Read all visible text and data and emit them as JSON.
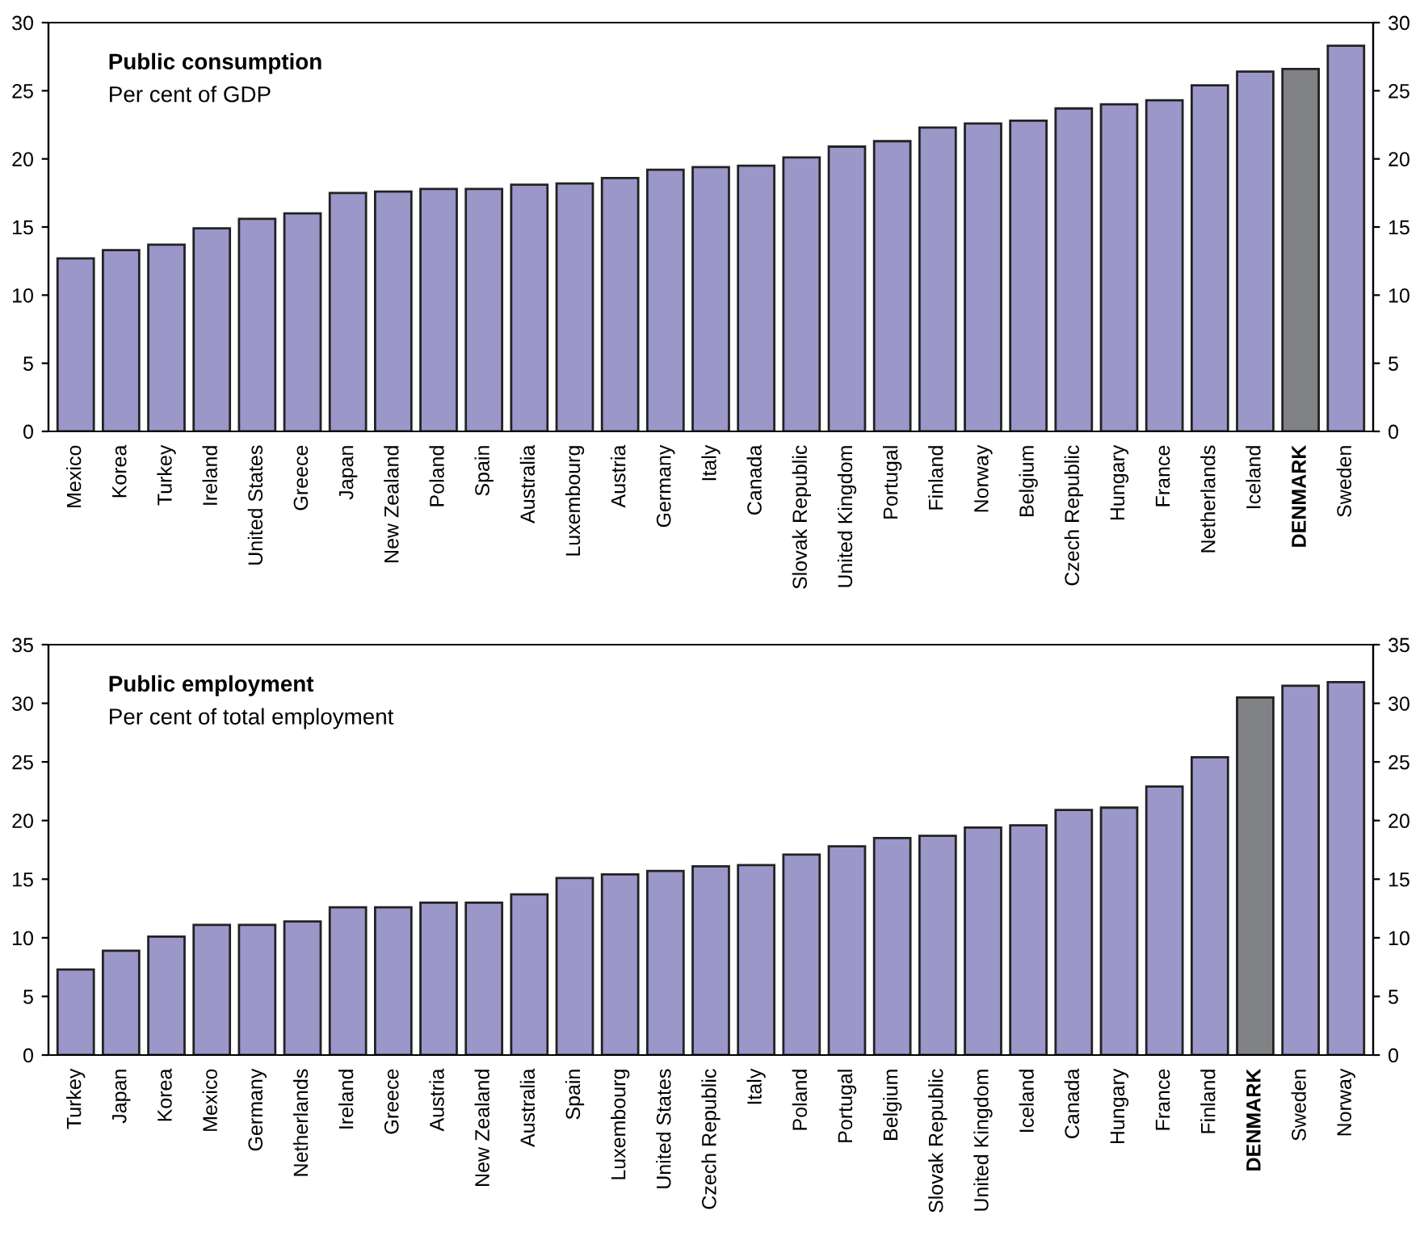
{
  "chart_data": [
    {
      "type": "bar",
      "title": "Public consumption",
      "subtitle": "Per cent of GDP",
      "categories": [
        "Mexico",
        "Korea",
        "Turkey",
        "Ireland",
        "United States",
        "Greece",
        "Japan",
        "New Zealand",
        "Poland",
        "Spain",
        "Australia",
        "Luxembourg",
        "Austria",
        "Germany",
        "Italy",
        "Canada",
        "Slovak Republic",
        "United Kingdom",
        "Portugal",
        "Finland",
        "Norway",
        "Belgium",
        "Czech Republic",
        "Hungary",
        "France",
        "Netherlands",
        "Iceland",
        "DENMARK",
        "Sweden"
      ],
      "values": [
        12.7,
        13.3,
        13.7,
        14.9,
        15.6,
        16.0,
        17.5,
        17.6,
        17.8,
        17.8,
        18.1,
        18.2,
        18.6,
        19.2,
        19.4,
        19.5,
        20.1,
        20.9,
        21.3,
        22.3,
        22.6,
        22.8,
        23.7,
        24.0,
        24.3,
        25.4,
        26.4,
        26.6,
        28.3
      ],
      "colors": [
        "#9b97c9",
        "#9b97c9",
        "#9b97c9",
        "#9b97c9",
        "#9b97c9",
        "#9b97c9",
        "#9b97c9",
        "#9b97c9",
        "#9b97c9",
        "#9b97c9",
        "#9b97c9",
        "#9b97c9",
        "#9b97c9",
        "#9b97c9",
        "#9b97c9",
        "#9b97c9",
        "#9b97c9",
        "#9b97c9",
        "#9b97c9",
        "#9b97c9",
        "#9b97c9",
        "#9b97c9",
        "#9b97c9",
        "#9b97c9",
        "#9b97c9",
        "#9b97c9",
        "#9b97c9",
        "#808285",
        "#9b97c9"
      ],
      "ylim": [
        0,
        30
      ],
      "yticks": [
        0,
        5,
        10,
        15,
        20,
        25,
        30
      ],
      "y2lim": [
        0,
        30
      ],
      "y2ticks": [
        0,
        5,
        10,
        15,
        20,
        25,
        30
      ],
      "grid": false,
      "legend": false
    },
    {
      "type": "bar",
      "title": "Public employment",
      "subtitle": "Per cent of total employment",
      "categories": [
        "Turkey",
        "Japan",
        "Korea",
        "Mexico",
        "Germany",
        "Netherlands",
        "Ireland",
        "Greece",
        "Austria",
        "New Zealand",
        "Australia",
        "Spain",
        "Luxembourg",
        "United States",
        "Czech Republic",
        "Italy",
        "Poland",
        "Portugal",
        "Belgium",
        "Slovak Republic",
        "United Kingdom",
        "Iceland",
        "Canada",
        "Hungary",
        "France",
        "Finland",
        "DENMARK",
        "Sweden",
        "Norway"
      ],
      "values": [
        7.3,
        8.9,
        10.1,
        11.1,
        11.1,
        11.4,
        12.6,
        12.6,
        13.0,
        13.0,
        13.7,
        15.1,
        15.4,
        15.7,
        16.1,
        16.2,
        17.1,
        17.8,
        18.5,
        18.7,
        19.4,
        19.6,
        20.9,
        21.1,
        22.9,
        25.4,
        30.5,
        31.5,
        31.8
      ],
      "colors": [
        "#9b97c9",
        "#9b97c9",
        "#9b97c9",
        "#9b97c9",
        "#9b97c9",
        "#9b97c9",
        "#9b97c9",
        "#9b97c9",
        "#9b97c9",
        "#9b97c9",
        "#9b97c9",
        "#9b97c9",
        "#9b97c9",
        "#9b97c9",
        "#9b97c9",
        "#9b97c9",
        "#9b97c9",
        "#9b97c9",
        "#9b97c9",
        "#9b97c9",
        "#9b97c9",
        "#9b97c9",
        "#9b97c9",
        "#9b97c9",
        "#9b97c9",
        "#9b97c9",
        "#808285",
        "#9b97c9",
        "#9b97c9"
      ],
      "ylim": [
        0,
        35
      ],
      "yticks": [
        0,
        5,
        10,
        15,
        20,
        25,
        30,
        35
      ],
      "y2lim": [
        0,
        35
      ],
      "y2ticks": [
        0,
        5,
        10,
        15,
        20,
        25,
        30,
        35
      ],
      "grid": false,
      "legend": false
    }
  ]
}
